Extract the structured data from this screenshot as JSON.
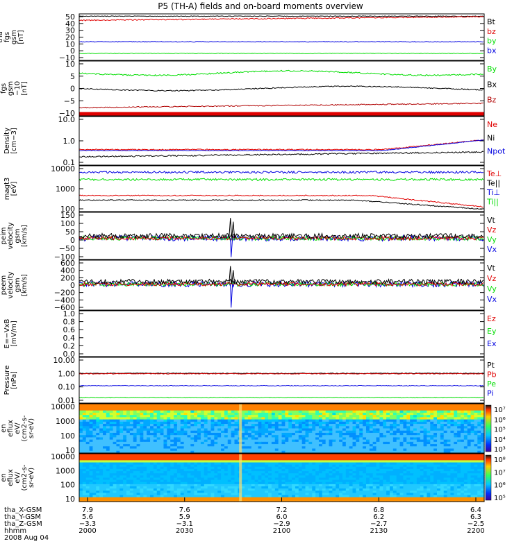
{
  "title": "P5 (TH-A) fields and on-board moments overview",
  "colors": {
    "black": "#000000",
    "red": "#e00000",
    "blue": "#0000e0",
    "green": "#00dd00",
    "darkred": "#b00000"
  },
  "panels": [
    {
      "id": "fgs_gse",
      "ylabel": [
        "tha",
        "fgs",
        "gsm",
        "[nT]"
      ],
      "ticks": [
        "50",
        "40",
        "30",
        "20",
        "10",
        "0",
        "−10"
      ],
      "legend": [
        {
          "t": "Bt",
          "c": "black"
        },
        {
          "t": "bz",
          "c": "red"
        },
        {
          "t": "by",
          "c": "green"
        },
        {
          "t": "bx",
          "c": "blue"
        }
      ]
    },
    {
      "id": "fgs_gsm",
      "ylabel": [
        "tha",
        "fgs",
        "gsm",
        "−10",
        "[nT]"
      ],
      "ticks": [
        "10",
        "5",
        "0",
        "−5",
        "−10"
      ],
      "legend": [
        {
          "t": "By",
          "c": "green"
        },
        {
          "t": "Bx",
          "c": "black"
        },
        {
          "t": "Bz",
          "c": "darkred"
        }
      ]
    },
    {
      "id": "density",
      "ylabel": [
        "Density",
        "[cm−3]"
      ],
      "ticks": [
        "10.0",
        "1.0",
        "0.1"
      ],
      "legend": [
        {
          "t": "Ne",
          "c": "red"
        },
        {
          "t": "Ni",
          "c": "black"
        },
        {
          "t": "Npot",
          "c": "blue"
        }
      ]
    },
    {
      "id": "temp",
      "ylabel": [
        "magt3",
        "[eV]"
      ],
      "ticks": [
        "10000",
        "1000",
        "100"
      ],
      "legend": [
        {
          "t": "Te⊥",
          "c": "red"
        },
        {
          "t": "Te||",
          "c": "black"
        },
        {
          "t": "Ti⊥",
          "c": "blue"
        },
        {
          "t": "Ti||",
          "c": "green"
        }
      ]
    },
    {
      "id": "peir_vel",
      "ylabel": [
        "tha",
        "peim",
        "velocity",
        "gsm",
        "[km/s]"
      ],
      "ticks": [
        "150",
        "100",
        "50",
        "0",
        "−50",
        "−100"
      ],
      "legend": [
        {
          "t": "Vt",
          "c": "black"
        },
        {
          "t": "Vz",
          "c": "red"
        },
        {
          "t": "Vy",
          "c": "green"
        },
        {
          "t": "Vx",
          "c": "blue"
        }
      ]
    },
    {
      "id": "peem_vel",
      "ylabel": [
        "tha",
        "peem",
        "velocity",
        "gsm",
        "[km/s]"
      ],
      "ticks": [
        "600",
        "400",
        "200",
        "0",
        "−200",
        "−400",
        "−600"
      ],
      "legend": [
        {
          "t": "Vt",
          "c": "black"
        },
        {
          "t": "Vz",
          "c": "red"
        },
        {
          "t": "Vy",
          "c": "green"
        },
        {
          "t": "Vx",
          "c": "blue"
        }
      ]
    },
    {
      "id": "efield",
      "ylabel": [
        "E=−VxB",
        "[mV/m]"
      ],
      "ticks": [
        "1.0",
        "0.8",
        "0.6",
        "0.4",
        "0.2",
        "0.0"
      ],
      "legend": [
        {
          "t": "Ez",
          "c": "red"
        },
        {
          "t": "Ey",
          "c": "green"
        },
        {
          "t": "Ex",
          "c": "blue"
        }
      ]
    },
    {
      "id": "pressure",
      "ylabel": [
        "Pressure",
        "[nPa]"
      ],
      "ticks": [
        "10.00",
        "1.00",
        "0.10",
        "0.01"
      ],
      "legend": [
        {
          "t": "Pt",
          "c": "black"
        },
        {
          "t": "Pb",
          "c": "red"
        },
        {
          "t": "Pe",
          "c": "green"
        },
        {
          "t": "Pi",
          "c": "blue"
        }
      ]
    },
    {
      "id": "peir_spec",
      "ylabel": [
        "tha",
        "peir",
        "en",
        "eflux",
        "eV/",
        "(cm2-s-",
        "sr-eV)"
      ],
      "ticks": [
        "10000",
        "1000",
        "100",
        "10"
      ],
      "cbar": [
        "10⁷",
        "10⁶",
        "10⁵",
        "10⁴",
        "10³"
      ]
    },
    {
      "id": "peer_spec",
      "ylabel": [
        "tha",
        "peer",
        "en",
        "eflux",
        "eV/",
        "(cm2-s-",
        "sr-eV)"
      ],
      "ticks": [
        "10000",
        "1000",
        "100",
        "10"
      ],
      "cbar": [
        "10⁸",
        "10⁷",
        "10⁶",
        "10⁵"
      ]
    }
  ],
  "xaxis": {
    "row_labels": [
      "tha_X-GSM",
      "tha_Y-GSM",
      "tha_Z-GSM",
      "hhmm",
      "2008 Aug 04"
    ],
    "columns": [
      [
        "7.9",
        "5.6",
        "−3.3",
        "2000"
      ],
      [
        "7.6",
        "5.9",
        "−3.1",
        "2030"
      ],
      [
        "7.2",
        "6.0",
        "−2.9",
        "2100"
      ],
      [
        "6.8",
        "6.2",
        "−2.7",
        "2130"
      ],
      [
        "6.4",
        "6.3",
        "−2.5",
        "2200"
      ]
    ]
  },
  "chart_data": {
    "type": "line",
    "title": "P5 (TH-A) fields and on-board moments overview",
    "x_time_labels": [
      "2000",
      "2030",
      "2100",
      "2130",
      "2200"
    ],
    "date": "2008 Aug 04",
    "series_levels": {
      "fgs_gse_nT": {
        "Bt": 45,
        "bz": 44,
        "by": 15,
        "bx": -2
      },
      "fgs_gsm_nT": {
        "By": 4,
        "Bx": -1,
        "Bz": -10
      },
      "density_cm3": {
        "Ne": 0.45,
        "Ni": 0.3,
        "Npot": 0.45
      },
      "temp_eV": {
        "Te_perp": 400,
        "Te_par": 300,
        "Ti_perp": 5000,
        "Ti_par": 3000
      },
      "pressure_nPa": {
        "Pt": 1.0,
        "Pb": 1.0,
        "Pe": 0.03,
        "Pi": 0.15
      }
    }
  }
}
